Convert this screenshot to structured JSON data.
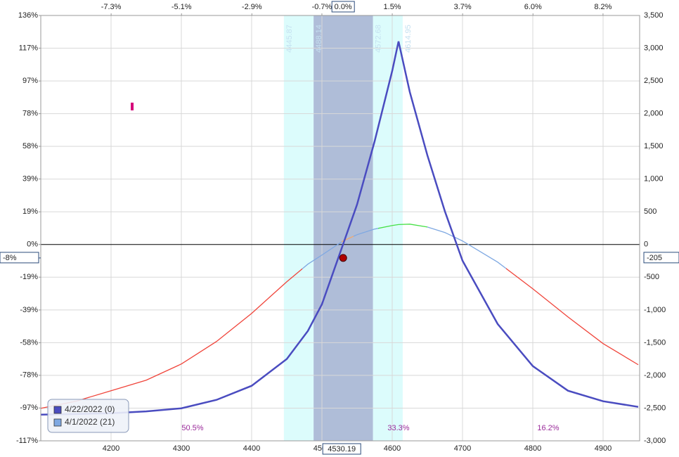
{
  "chart_data": {
    "type": "line",
    "xlim": [
      4100,
      4952
    ],
    "xticks": [
      4200,
      4300,
      4400,
      4500,
      4600,
      4700,
      4800,
      4900
    ],
    "x2lim": [
      -9.5,
      9.31
    ],
    "x2ticks": [
      {
        "value": -7.29,
        "label": "-7.3%"
      },
      {
        "value": -5.08,
        "label": "-5.1%"
      },
      {
        "value": -2.87,
        "label": "-2.9%"
      },
      {
        "value": -0.67,
        "label": "-0.7%"
      },
      {
        "value": 1.54,
        "label": "1.5%"
      },
      {
        "value": 3.75,
        "label": "3.7%"
      },
      {
        "value": 5.96,
        "label": "6.0%"
      },
      {
        "value": 8.16,
        "label": "8.2%"
      }
    ],
    "ylim": [
      -116.6,
      136
    ],
    "yticks": [
      {
        "value": 136,
        "label": "136%"
      },
      {
        "value": 116.6,
        "label": "117%"
      },
      {
        "value": 97.1,
        "label": "97%"
      },
      {
        "value": 77.7,
        "label": "78%"
      },
      {
        "value": 58.3,
        "label": "58%"
      },
      {
        "value": 38.9,
        "label": "39%"
      },
      {
        "value": 19.4,
        "label": "19%"
      },
      {
        "value": 0,
        "label": "0%"
      },
      {
        "value": -19.4,
        "label": "-19%"
      },
      {
        "value": -38.9,
        "label": "-39%"
      },
      {
        "value": -58.3,
        "label": "-58%"
      },
      {
        "value": -77.7,
        "label": "-78%"
      },
      {
        "value": -97.1,
        "label": "-97%"
      },
      {
        "value": -116.6,
        "label": "-117%"
      }
    ],
    "y2lim": [
      -3000,
      3500
    ],
    "y2ticks": [
      {
        "value": 3500,
        "label": "3,500"
      },
      {
        "value": 3000,
        "label": "3,000"
      },
      {
        "value": 2500,
        "label": "2,500"
      },
      {
        "value": 2000,
        "label": "2,000"
      },
      {
        "value": 1500,
        "label": "1,500"
      },
      {
        "value": 1000,
        "label": "1,000"
      },
      500,
      0,
      -500,
      {
        "value": -1000,
        "label": "-1,000"
      },
      {
        "value": -1500,
        "label": "-1,500"
      },
      {
        "value": -2000,
        "label": "-2,000"
      },
      {
        "value": -2500,
        "label": "-2,500"
      },
      {
        "value": -3000,
        "label": "-3,000"
      }
    ],
    "grid": true,
    "band_edges": [
      4445.87,
      4488.14,
      4572.68,
      4614.95
    ],
    "band_colors": [
      "#dcfcfc",
      "#afbdd8",
      "#dcfcfc"
    ],
    "current": {
      "x": 4530.19,
      "x_pct_label": "0.0%",
      "y2": -205,
      "y_pct": -8,
      "y_pct_label": "-8%"
    },
    "probabilities": {
      "values": [
        50.5,
        33.3,
        16.2
      ],
      "value_labels": [
        "50.5%",
        "33.3%",
        "16.2%"
      ],
      "color": "#9a2a9a"
    },
    "x": [
      4100,
      4150,
      4200,
      4250,
      4300,
      4350,
      4400,
      4450,
      4480,
      4500,
      4530,
      4550,
      4575,
      4600,
      4609,
      4625,
      4650,
      4675,
      4700,
      4750,
      4800,
      4850,
      4900,
      4950
    ],
    "series": [
      {
        "name": "4/22/2022 (0)",
        "color": "#4a4cc0",
        "axis": "y2",
        "values": [
          -2600,
          -2590,
          -2578,
          -2550,
          -2503,
          -2374,
          -2159,
          -1750,
          -1321,
          -913,
          0,
          612,
          1579,
          2653,
          3104,
          2331,
          1364,
          505,
          -247,
          -1214,
          -1858,
          -2234,
          -2395,
          -2481
        ]
      },
      {
        "name": "4/1/2022 (21)",
        "color": "#7ea8e2",
        "axis": "y2",
        "color_ranges": [
          {
            "from": 4100,
            "to": 4472,
            "color": "#f0443a"
          },
          {
            "from": 4528,
            "to": 4545,
            "color": "#f4a86b"
          },
          {
            "from": 4580,
            "to": 4650,
            "color": "#46e046"
          },
          {
            "from": 4762,
            "to": 4952,
            "color": "#f0443a"
          }
        ],
        "values": [
          -2503,
          -2395,
          -2234,
          -2073,
          -1826,
          -1482,
          -1053,
          -569,
          -300,
          -161,
          54,
          150,
          236,
          290,
          305,
          311,
          268,
          183,
          54,
          -269,
          -677,
          -1106,
          -1514,
          -1837
        ]
      }
    ]
  }
}
